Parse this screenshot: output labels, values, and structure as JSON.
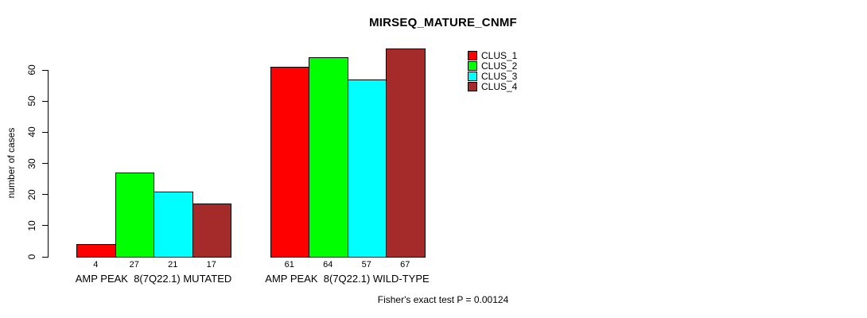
{
  "chart_data": {
    "type": "bar",
    "title": "MIRSEQ_MATURE_CNMF",
    "ylabel": "number of cases",
    "xlabel": "",
    "yticks": [
      0,
      10,
      20,
      30,
      40,
      50,
      60
    ],
    "ylim": [
      0,
      67
    ],
    "grid": false,
    "legend_position": "top-right",
    "categories": [
      "AMP PEAK  8(7Q22.1) MUTATED",
      "AMP PEAK  8(7Q22.1) WILD-TYPE"
    ],
    "series": [
      {
        "name": "CLUS_1",
        "color": "#FF0000",
        "values": [
          4,
          61
        ]
      },
      {
        "name": "CLUS_2",
        "color": "#00FF00",
        "values": [
          27,
          64
        ]
      },
      {
        "name": "CLUS_3",
        "color": "#00FFFF",
        "values": [
          21,
          57
        ]
      },
      {
        "name": "CLUS_4",
        "color": "#A52A2A",
        "values": [
          17,
          67
        ]
      }
    ],
    "annotation": "Fisher's exact test P = 0.00124"
  }
}
